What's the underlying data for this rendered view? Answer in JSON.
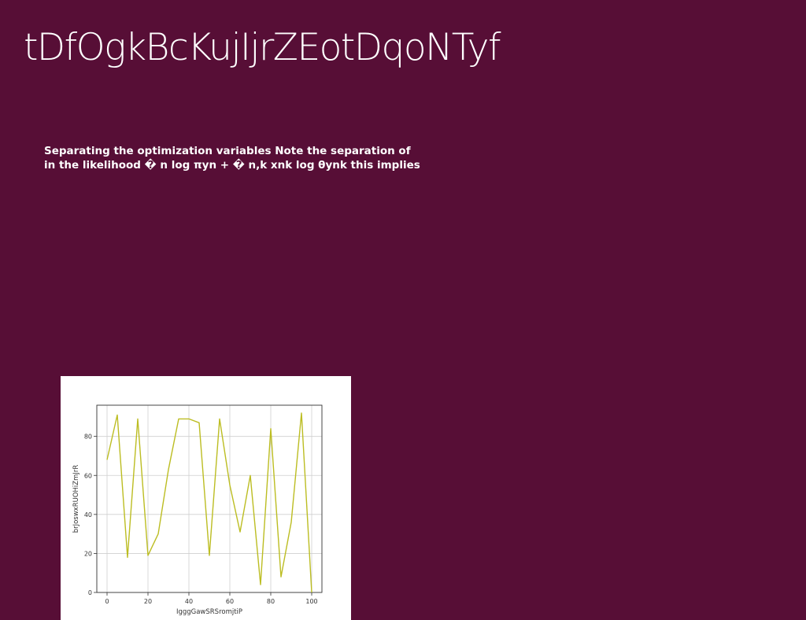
{
  "slide": {
    "title": "tDfOgkBcKujIjrZEotDqoNTyf",
    "body_lines": [
      "Separating the optimization variables Note the separation of",
      "in the likelihood � n log πyn + � n,k xnk log θynk this implies"
    ]
  },
  "chart_data": {
    "type": "line",
    "title": "",
    "xlabel": "IgggGawSRSromjtiP",
    "ylabel": "brJoswxRUOHiZmJrR",
    "xlim": [
      -5,
      105
    ],
    "ylim": [
      0,
      96
    ],
    "xticks": [
      0,
      20,
      40,
      60,
      80,
      100
    ],
    "yticks": [
      0,
      20,
      40,
      60,
      80
    ],
    "grid": true,
    "line_color": "#bcbd22",
    "series": [
      {
        "x": [
          0,
          5,
          10,
          15,
          20,
          25,
          30,
          35,
          40,
          45,
          50,
          55,
          60,
          65,
          70,
          75,
          80,
          85,
          90,
          95,
          100
        ],
        "y": [
          68,
          91,
          18,
          89,
          19,
          30,
          63,
          89,
          89,
          87,
          19,
          89,
          55,
          31,
          60,
          4,
          84,
          8,
          36,
          92,
          0
        ]
      }
    ]
  }
}
